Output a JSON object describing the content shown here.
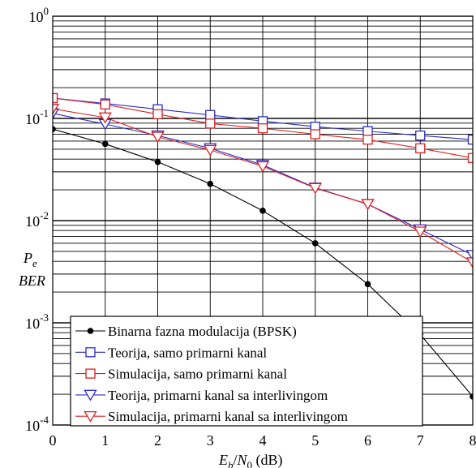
{
  "chart_data": {
    "type": "line",
    "title": "",
    "x": [
      0,
      1,
      2,
      3,
      4,
      5,
      6,
      7,
      8
    ],
    "xlim": [
      0,
      8
    ],
    "ylim": [
      0.0001,
      1
    ],
    "yscale": "log",
    "grid": true,
    "legend_position": "bottom-left",
    "xticks": [
      "0",
      "1",
      "2",
      "3",
      "4",
      "5",
      "6",
      "7",
      "8"
    ],
    "yticks": [
      {
        "value": 1,
        "base": "10",
        "exp": "0"
      },
      {
        "value": 0.1,
        "base": "10",
        "exp": "-1"
      },
      {
        "value": 0.01,
        "base": "10",
        "exp": "-2"
      },
      {
        "value": 0.001,
        "base": "10",
        "exp": "-3"
      },
      {
        "value": 0.0001,
        "base": "10",
        "exp": "-4"
      }
    ],
    "xlabel": {
      "e": "E",
      "e_sub": "b",
      "slash": "/",
      "n": "N",
      "n_sub": "0",
      "unit": " (dB)"
    },
    "ylabel": {
      "line1": "P",
      "line1_sub": "e",
      "line2": "BER"
    },
    "series": [
      {
        "name": "Binarna fazna modulacija (BPSK)",
        "color": "#000000",
        "marker": "dot",
        "values": [
          0.0786,
          0.0563,
          0.0375,
          0.0229,
          0.0125,
          0.006,
          0.00239,
          0.00077,
          0.00019
        ]
      },
      {
        "name": "Teorija, samo  primarni kanal",
        "color": "#2b2bcc",
        "marker": "square",
        "values": [
          0.158,
          0.14,
          0.123,
          0.108,
          0.094,
          0.083,
          0.075,
          0.068,
          0.062
        ]
      },
      {
        "name": "Simulacija, samo primarni kanal",
        "color": "#e02020",
        "marker": "square",
        "values": [
          0.158,
          0.137,
          0.11,
          0.089,
          0.08,
          0.07,
          0.062,
          0.051,
          0.041
        ]
      },
      {
        "name": "Teorija, primarni kanal sa interlivingom",
        "color": "#2b2bcc",
        "marker": "triangle-down",
        "values": [
          0.112,
          0.088,
          0.068,
          0.051,
          0.035,
          0.021,
          0.0145,
          0.0082,
          0.0046
        ]
      },
      {
        "name": "Simulacija, primarni kanal sa interlivingom",
        "color": "#e02020",
        "marker": "triangle-down",
        "values": [
          0.124,
          0.102,
          0.066,
          0.049,
          0.034,
          0.0208,
          0.0145,
          0.0078,
          0.0039
        ]
      }
    ]
  }
}
